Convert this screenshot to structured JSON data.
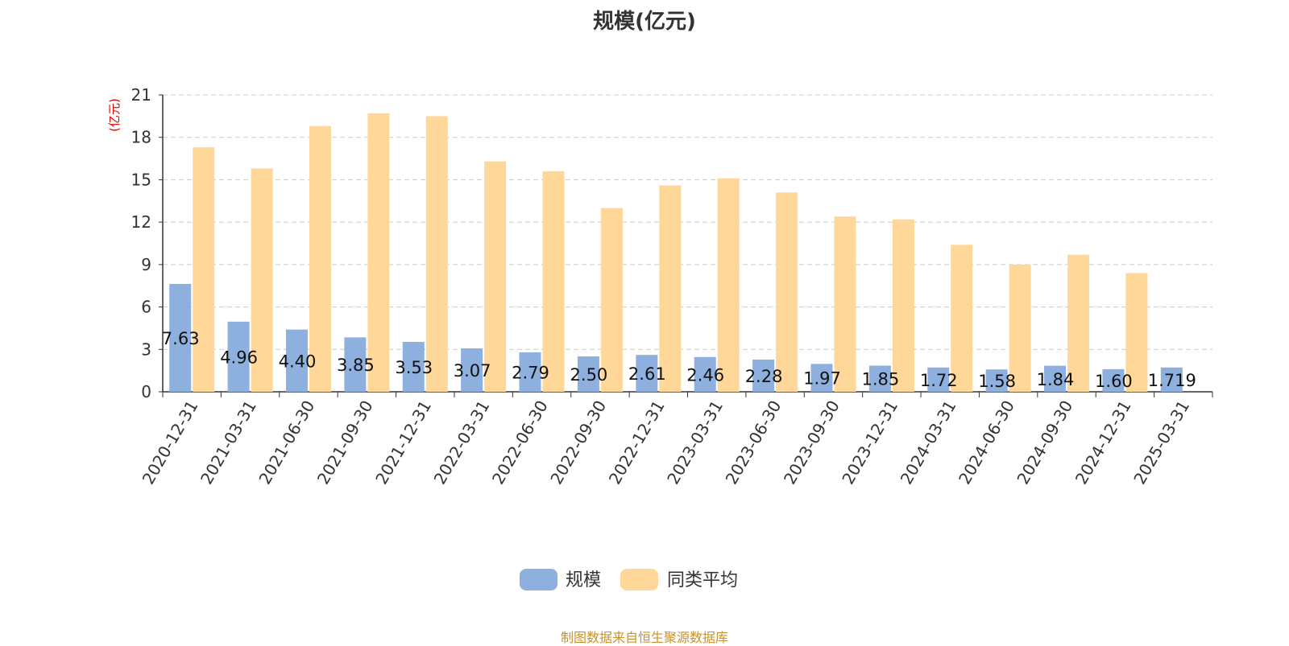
{
  "title": "规模(亿元)",
  "source_note": "制图数据来自恒生聚源数据库",
  "colors": {
    "series1": "#8eb0df",
    "series2": "#ffd899",
    "unit_label": "#e60000",
    "grid": "#cccccc",
    "axis": "#333333"
  },
  "chart_data": {
    "type": "bar",
    "title": "规模(亿元)",
    "ylabel": "(亿元)",
    "xlabel": "",
    "ylim": [
      0,
      21
    ],
    "yticks": [
      "0",
      "3",
      "6",
      "9",
      "12",
      "15",
      "18",
      "21"
    ],
    "grid": true,
    "legend_position": "bottom-center",
    "categories": [
      "2020-12-31",
      "2021-03-31",
      "2021-06-30",
      "2021-09-30",
      "2021-12-31",
      "2022-03-31",
      "2022-06-30",
      "2022-09-30",
      "2022-12-31",
      "2023-03-31",
      "2023-06-30",
      "2023-09-30",
      "2023-12-31",
      "2024-03-31",
      "2024-06-30",
      "2024-09-30",
      "2024-12-31",
      "2025-03-31"
    ],
    "series": [
      {
        "name": "规模",
        "values": [
          7.63,
          4.96,
          4.4,
          3.85,
          3.53,
          3.07,
          2.79,
          2.5,
          2.61,
          2.46,
          2.28,
          1.97,
          1.85,
          1.72,
          1.58,
          1.84,
          1.6,
          1.719
        ],
        "labels": [
          "7.63",
          "4.96",
          "4.40",
          "3.85",
          "3.53",
          "3.07",
          "2.79",
          "2.50",
          "2.61",
          "2.46",
          "2.28",
          "1.97",
          "1.85",
          "1.72",
          "1.58",
          "1.84",
          "1.60",
          "1.719"
        ]
      },
      {
        "name": "同类平均",
        "values": [
          17.3,
          15.8,
          18.8,
          19.7,
          19.5,
          16.3,
          15.6,
          13.0,
          14.6,
          15.1,
          14.1,
          12.4,
          12.2,
          10.4,
          9.0,
          9.7,
          8.4,
          null
        ]
      }
    ]
  }
}
